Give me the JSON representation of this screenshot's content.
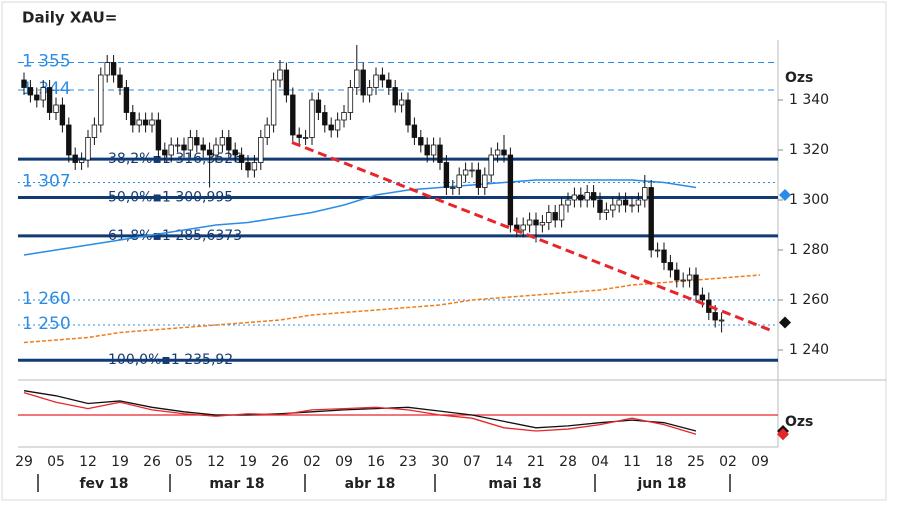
{
  "chart_data": {
    "type": "candlestick",
    "title": "Daily XAU=",
    "y_label": "Ozs",
    "ylim": [
      1229,
      1364
    ],
    "yticks": [
      {
        "value": 1240,
        "label": "1 240"
      },
      {
        "value": 1260,
        "label": "1 260"
      },
      {
        "value": 1280,
        "label": "1 280"
      },
      {
        "value": 1300,
        "label": "1 300"
      },
      {
        "value": 1320,
        "label": "1 320"
      },
      {
        "value": 1340,
        "label": "1 340"
      }
    ],
    "xtick_labels": [
      "29",
      "05",
      "12",
      "19",
      "26",
      "05",
      "12",
      "19",
      "26",
      "02",
      "09",
      "16",
      "23",
      "30",
      "07",
      "14",
      "21",
      "28",
      "04",
      "11",
      "18",
      "25",
      "02",
      "09"
    ],
    "months": [
      "fev 18",
      "mar 18",
      "abr 18",
      "mai 18",
      "jun 18"
    ],
    "candles": {
      "open": [
        1348,
        1345,
        1342,
        1340,
        1345,
        1335,
        1338,
        1330,
        1318,
        1315,
        1316,
        1325,
        1330,
        1350,
        1355,
        1350,
        1345,
        1335,
        1330,
        1332,
        1330,
        1332,
        1320,
        1318,
        1322,
        1322,
        1320,
        1325,
        1322,
        1320,
        1318,
        1322,
        1325,
        1320,
        1318,
        1315,
        1312,
        1315,
        1325,
        1330,
        1348,
        1352,
        1342,
        1326,
        1325,
        1325,
        1340,
        1335,
        1330,
        1328,
        1332,
        1335,
        1345,
        1352,
        1342,
        1345,
        1350,
        1348,
        1345,
        1338,
        1340,
        1330,
        1325,
        1322,
        1318,
        1322,
        1315,
        1305,
        1305,
        1310,
        1312,
        1312,
        1305,
        1310,
        1318,
        1320,
        1318,
        1290,
        1288,
        1290,
        1292,
        1290,
        1291,
        1295,
        1292,
        1298,
        1300,
        1302,
        1300,
        1303,
        1300,
        1295,
        1296,
        1298,
        1300,
        1298,
        1298,
        1300,
        1305,
        1280,
        1280,
        1275,
        1272,
        1268,
        1268,
        1270,
        1262,
        1260,
        1255,
        1252
      ],
      "high": [
        1351,
        1348,
        1345,
        1348,
        1348,
        1341,
        1341,
        1333,
        1321,
        1319,
        1328,
        1333,
        1353,
        1358,
        1358,
        1353,
        1348,
        1338,
        1335,
        1335,
        1335,
        1335,
        1323,
        1325,
        1325,
        1325,
        1328,
        1328,
        1325,
        1323,
        1325,
        1328,
        1328,
        1323,
        1321,
        1318,
        1318,
        1328,
        1333,
        1351,
        1356,
        1355,
        1345,
        1329,
        1328,
        1343,
        1343,
        1338,
        1333,
        1335,
        1338,
        1348,
        1362,
        1355,
        1348,
        1353,
        1353,
        1351,
        1348,
        1343,
        1343,
        1333,
        1328,
        1325,
        1325,
        1325,
        1318,
        1308,
        1313,
        1315,
        1315,
        1315,
        1313,
        1321,
        1323,
        1326,
        1321,
        1293,
        1293,
        1295,
        1295,
        1294,
        1298,
        1298,
        1301,
        1303,
        1305,
        1305,
        1306,
        1306,
        1303,
        1299,
        1301,
        1303,
        1303,
        1301,
        1303,
        1310,
        1308,
        1283,
        1283,
        1278,
        1275,
        1271,
        1273,
        1273,
        1265,
        1263,
        1258,
        1255
      ],
      "low": [
        1342,
        1339,
        1337,
        1337,
        1332,
        1332,
        1327,
        1315,
        1312,
        1312,
        1313,
        1322,
        1327,
        1347,
        1347,
        1342,
        1332,
        1327,
        1327,
        1327,
        1327,
        1317,
        1315,
        1315,
        1319,
        1317,
        1317,
        1319,
        1317,
        1305,
        1315,
        1319,
        1317,
        1315,
        1312,
        1309,
        1309,
        1312,
        1322,
        1327,
        1345,
        1339,
        1323,
        1322,
        1322,
        1322,
        1332,
        1327,
        1325,
        1325,
        1329,
        1332,
        1342,
        1339,
        1339,
        1342,
        1345,
        1342,
        1335,
        1335,
        1327,
        1322,
        1319,
        1315,
        1315,
        1312,
        1302,
        1302,
        1302,
        1307,
        1309,
        1302,
        1302,
        1307,
        1315,
        1315,
        1287,
        1285,
        1285,
        1287,
        1283,
        1287,
        1288,
        1289,
        1289,
        1295,
        1297,
        1297,
        1297,
        1297,
        1292,
        1292,
        1293,
        1295,
        1295,
        1295,
        1295,
        1297,
        1277,
        1277,
        1272,
        1269,
        1265,
        1265,
        1265,
        1259,
        1257,
        1252,
        1249,
        1247
      ],
      "close": [
        1345,
        1342,
        1340,
        1345,
        1335,
        1338,
        1330,
        1318,
        1315,
        1316,
        1325,
        1330,
        1350,
        1355,
        1350,
        1345,
        1335,
        1330,
        1332,
        1330,
        1332,
        1320,
        1318,
        1322,
        1322,
        1320,
        1325,
        1322,
        1320,
        1318,
        1322,
        1325,
        1320,
        1318,
        1315,
        1312,
        1315,
        1325,
        1330,
        1348,
        1352,
        1342,
        1326,
        1325,
        1325,
        1340,
        1335,
        1330,
        1328,
        1332,
        1335,
        1345,
        1352,
        1342,
        1345,
        1350,
        1348,
        1345,
        1338,
        1340,
        1330,
        1325,
        1322,
        1318,
        1322,
        1315,
        1305,
        1305,
        1310,
        1312,
        1312,
        1305,
        1310,
        1318,
        1320,
        1318,
        1290,
        1288,
        1290,
        1292,
        1290,
        1291,
        1295,
        1292,
        1298,
        1300,
        1302,
        1300,
        1303,
        1300,
        1295,
        1296,
        1298,
        1300,
        1298,
        1298,
        1300,
        1305,
        1280,
        1280,
        1275,
        1272,
        1268,
        1268,
        1270,
        1262,
        1260,
        1255,
        1252,
        1252
      ]
    },
    "moving_averages": [
      {
        "color": "#2b8ce6",
        "style": "solid",
        "values": [
          1278,
          1280,
          1282,
          1284,
          1286,
          1288,
          1290,
          1291,
          1293,
          1295,
          1298,
          1302,
          1304,
          1305,
          1306,
          1307,
          1308,
          1308,
          1308,
          1308,
          1307,
          1305,
          null,
          null
        ]
      },
      {
        "color": "#f07d1a",
        "style": "dashed",
        "values": [
          1243,
          1244,
          1245,
          1247,
          1248,
          1249,
          1250,
          1251,
          1252,
          1254,
          1255,
          1256,
          1257,
          1258,
          1260,
          1261,
          1262,
          1263,
          1264,
          1266,
          1267,
          1268,
          1269,
          1270
        ]
      }
    ],
    "levels": [
      {
        "value": 1355,
        "label": "1 355",
        "style": "dashed"
      },
      {
        "value": 1344,
        "label": "1 344",
        "style": "dashed"
      },
      {
        "value": 1307,
        "label": "1 307",
        "style": "dotted"
      },
      {
        "value": 1260,
        "label": "1 260",
        "style": "dotted"
      },
      {
        "value": 1250,
        "label": "1 250",
        "style": "dotted"
      },
      {
        "value": 1316.3526,
        "label": "38,2%▪1 316,3526",
        "style": "fib"
      },
      {
        "value": 1300.995,
        "label": "50,0%▪1 300,995",
        "style": "fib"
      },
      {
        "value": 1285.6373,
        "label": "61,8%▪1 285,6373",
        "style": "fib"
      },
      {
        "value": 1235.92,
        "label": "100,0%▪1 235,92",
        "style": "fib"
      }
    ],
    "trendline": {
      "start": 1323,
      "end": 1248,
      "color": "#e8262a"
    },
    "markers": [
      {
        "value": 1302,
        "color": "#2b8ce6"
      },
      {
        "value": 1251,
        "color": "#111111"
      }
    ],
    "oscillator": {
      "label": "Ozs",
      "ylim": [
        0,
        100
      ],
      "ref": 50,
      "ref_color": "#e8262a",
      "series": [
        {
          "color": "#111111",
          "values": [
            88,
            80,
            68,
            72,
            62,
            55,
            50,
            50,
            52,
            55,
            58,
            60,
            62,
            56,
            50,
            40,
            30,
            33,
            38,
            42,
            38,
            25,
            null,
            null
          ]
        },
        {
          "color": "#e8262a",
          "values": [
            85,
            70,
            60,
            70,
            58,
            52,
            48,
            52,
            50,
            58,
            60,
            62,
            58,
            50,
            45,
            30,
            25,
            28,
            35,
            45,
            35,
            20,
            null,
            null
          ]
        }
      ],
      "markers": [
        {
          "value": 25,
          "color": "#111111"
        },
        {
          "value": 20,
          "color": "#e8262a"
        }
      ]
    }
  }
}
